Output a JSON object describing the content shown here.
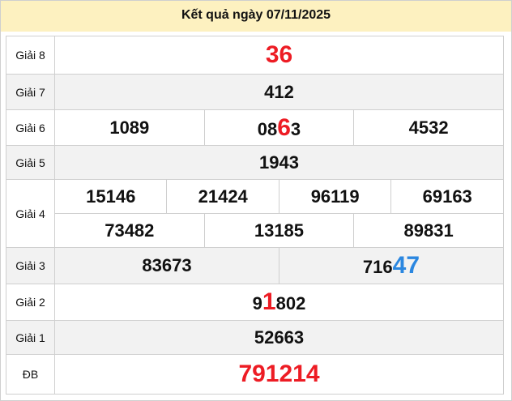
{
  "title": "Kết quả ngày 07/11/2025",
  "colors": {
    "red": "#ed1c24",
    "blue": "#2b87e0",
    "header_bg": "#fdf1c0"
  },
  "prizes": [
    {
      "label": "Giải 8",
      "numbers": [
        {
          "pre": "",
          "hl": "36",
          "post": "",
          "color": "red"
        }
      ]
    },
    {
      "label": "Giải 7",
      "numbers": [
        {
          "pre": "412",
          "hl": "",
          "post": ""
        }
      ]
    },
    {
      "label": "Giải 6",
      "numbers": [
        {
          "pre": "1089",
          "hl": "",
          "post": ""
        },
        {
          "pre": "08",
          "hl": "6",
          "post": "3",
          "color": "red"
        },
        {
          "pre": "4532",
          "hl": "",
          "post": ""
        }
      ]
    },
    {
      "label": "Giải 5",
      "numbers": [
        {
          "pre": "1943",
          "hl": "",
          "post": ""
        }
      ]
    },
    {
      "label": "Giải 4",
      "numbers": [
        {
          "pre": "15146"
        },
        {
          "pre": "21424"
        },
        {
          "pre": "96119"
        },
        {
          "pre": "69163"
        },
        {
          "pre": "73482"
        },
        {
          "pre": "13185"
        },
        {
          "pre": "89831"
        }
      ]
    },
    {
      "label": "Giải 3",
      "numbers": [
        {
          "pre": "83673",
          "hl": "",
          "post": ""
        },
        {
          "pre": "716",
          "hl": "47",
          "post": "",
          "color": "blue"
        }
      ]
    },
    {
      "label": "Giải 2",
      "numbers": [
        {
          "pre": "9",
          "hl": "1",
          "post": "802",
          "color": "red"
        }
      ]
    },
    {
      "label": "Giải 1",
      "numbers": [
        {
          "pre": "52663",
          "hl": "",
          "post": ""
        }
      ]
    },
    {
      "label": "ĐB",
      "numbers": [
        {
          "pre": "",
          "hl": "791214",
          "post": "",
          "color": "red"
        }
      ]
    }
  ]
}
